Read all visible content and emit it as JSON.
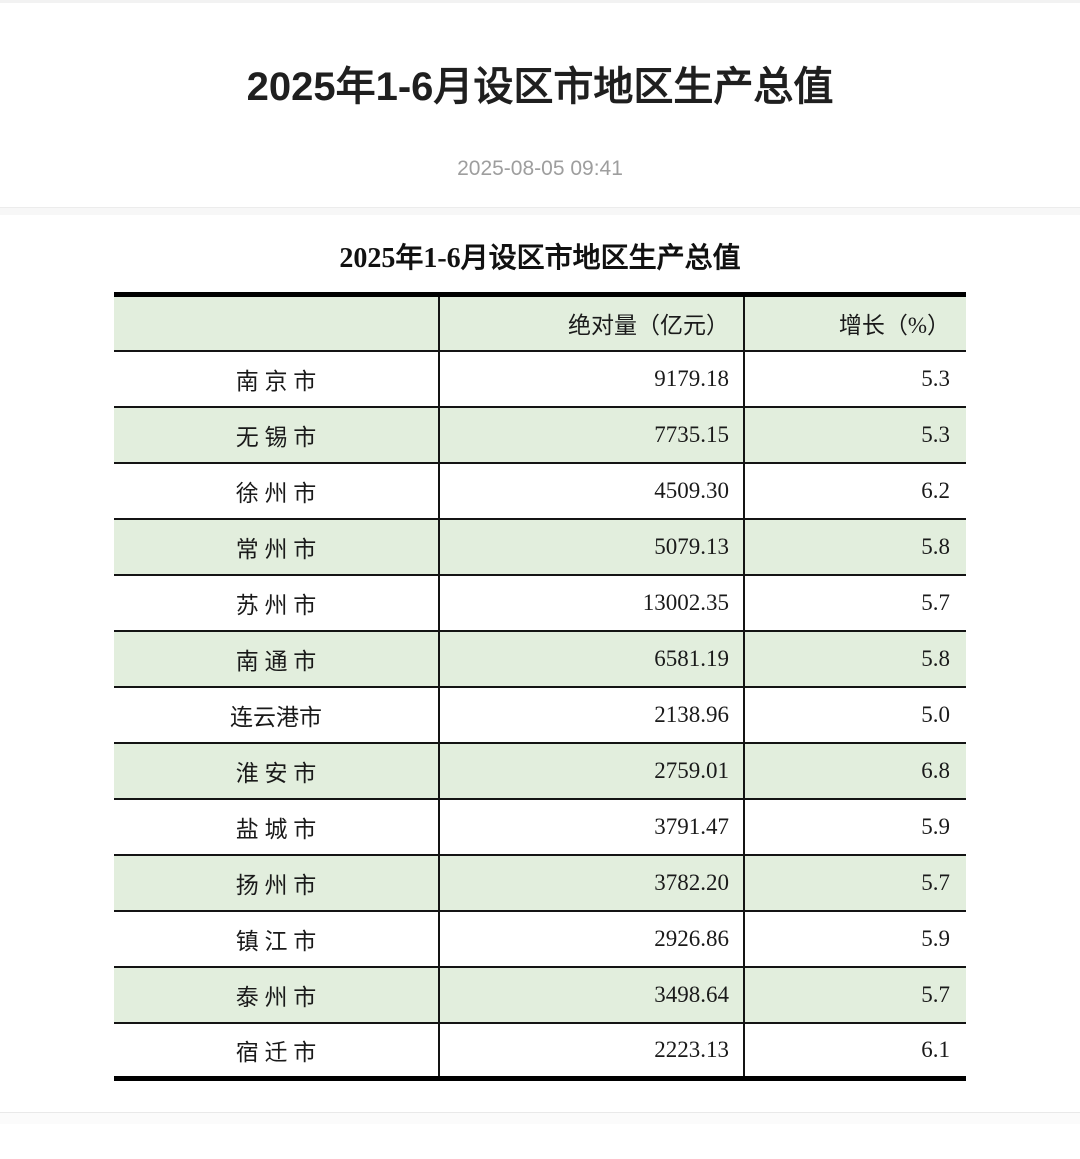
{
  "page": {
    "title": "2025年1-6月设区市地区生产总值",
    "publish_date": "2025-08-05 09:41"
  },
  "table": {
    "title": "2025年1-6月设区市地区生产总值",
    "columns": [
      "",
      "绝对量（亿元）",
      "增长（%）"
    ],
    "rows": [
      {
        "city": "南 京 市",
        "value": "9179.18",
        "growth": "5.3"
      },
      {
        "city": "无 锡 市",
        "value": "7735.15",
        "growth": "5.3"
      },
      {
        "city": "徐 州 市",
        "value": "4509.30",
        "growth": "6.2"
      },
      {
        "city": "常 州 市",
        "value": "5079.13",
        "growth": "5.8"
      },
      {
        "city": "苏 州 市",
        "value": "13002.35",
        "growth": "5.7"
      },
      {
        "city": "南 通 市",
        "value": "6581.19",
        "growth": "5.8"
      },
      {
        "city": "连云港市",
        "value": "2138.96",
        "growth": "5.0"
      },
      {
        "city": "淮 安 市",
        "value": "2759.01",
        "growth": "6.8"
      },
      {
        "city": "盐 城 市",
        "value": "3791.47",
        "growth": "5.9"
      },
      {
        "city": "扬 州 市",
        "value": "3782.20",
        "growth": "5.7"
      },
      {
        "city": "镇 江 市",
        "value": "2926.86",
        "growth": "5.9"
      },
      {
        "city": "泰 州 市",
        "value": "3498.64",
        "growth": "5.7"
      },
      {
        "city": "宿 迁 市",
        "value": "2223.13",
        "growth": "6.1"
      }
    ]
  },
  "colors": {
    "row_green": "#e2eedd",
    "table_border": "#000000",
    "date_gray": "#9e9e9e",
    "divider_gray": "#f7f7f7"
  }
}
